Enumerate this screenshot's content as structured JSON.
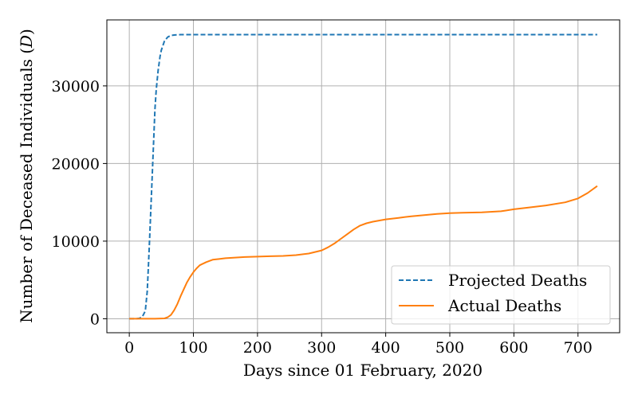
{
  "chart_data": {
    "type": "line",
    "title": "",
    "xlabel": "Days since 01 February, 2020",
    "ylabel_main": "Number of Deceased Individuals (",
    "ylabel_var": "D",
    "ylabel_end": ")",
    "xlim": [
      -35,
      765
    ],
    "ylim": [
      -1800,
      38500
    ],
    "xticks": [
      0,
      100,
      200,
      300,
      400,
      500,
      600,
      700
    ],
    "yticks": [
      0,
      10000,
      20000,
      30000
    ],
    "grid": true,
    "legend_position": "bottom-right",
    "series": [
      {
        "name": "Projected Deaths",
        "color": "#1f77b4",
        "style": "dashed",
        "x": [
          0,
          10,
          15,
          20,
          25,
          28,
          30,
          32,
          35,
          38,
          40,
          42,
          45,
          48,
          50,
          55,
          60,
          65,
          70,
          75,
          80,
          100,
          200,
          300,
          400,
          500,
          600,
          700,
          730
        ],
        "y": [
          0,
          0,
          50,
          200,
          1000,
          3500,
          7000,
          11000,
          17000,
          23000,
          27000,
          29500,
          32000,
          33800,
          34600,
          35800,
          36300,
          36500,
          36550,
          36580,
          36600,
          36600,
          36600,
          36600,
          36600,
          36600,
          36600,
          36600,
          36600
        ]
      },
      {
        "name": "Actual Deaths",
        "color": "#ff7f0e",
        "style": "solid",
        "x": [
          0,
          20,
          40,
          55,
          60,
          65,
          70,
          75,
          80,
          85,
          90,
          95,
          100,
          105,
          110,
          120,
          130,
          140,
          150,
          160,
          180,
          200,
          220,
          240,
          260,
          280,
          300,
          310,
          320,
          330,
          340,
          350,
          360,
          370,
          380,
          400,
          420,
          440,
          460,
          480,
          500,
          520,
          550,
          580,
          600,
          620,
          650,
          680,
          700,
          715,
          730
        ],
        "y": [
          0,
          0,
          0,
          50,
          200,
          500,
          1100,
          1900,
          2900,
          3800,
          4700,
          5400,
          6000,
          6500,
          6900,
          7300,
          7600,
          7700,
          7800,
          7850,
          7950,
          8000,
          8050,
          8100,
          8200,
          8400,
          8800,
          9200,
          9700,
          10300,
          10900,
          11500,
          12000,
          12300,
          12500,
          12800,
          13000,
          13200,
          13350,
          13500,
          13600,
          13650,
          13700,
          13850,
          14100,
          14300,
          14600,
          15000,
          15500,
          16200,
          17100
        ]
      }
    ]
  }
}
